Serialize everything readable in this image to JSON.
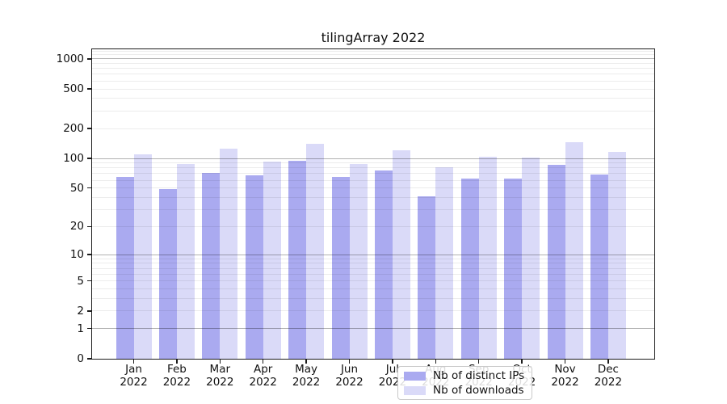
{
  "title": "tilingArray 2022",
  "legend": {
    "items": [
      {
        "label": "Nb of distinct IPs",
        "color": "#aaaaf0"
      },
      {
        "label": "Nb of downloads",
        "color": "#dadaf8"
      }
    ]
  },
  "y_axis": {
    "tick_values": [
      0,
      1,
      2,
      5,
      10,
      20,
      50,
      100,
      200,
      500,
      1000
    ],
    "tick_labels": [
      "0",
      "1",
      "2",
      "5",
      "10",
      "20",
      "50",
      "100",
      "200",
      "500",
      "1000"
    ]
  },
  "x_axis": {
    "months": [
      "Jan",
      "Feb",
      "Mar",
      "Apr",
      "May",
      "Jun",
      "Jul",
      "Aug",
      "Sep",
      "Oct",
      "Nov",
      "Dec"
    ],
    "year": "2022"
  },
  "colors": {
    "distinct_ips_bar": "#aaaaf0",
    "downloads_bar": "#dadaf8",
    "major_gridline": "rgba(0,0,0,0.30)",
    "minor_gridline": "rgba(0,0,0,0.075)",
    "spine": "#1c1c1c",
    "legend_border": "#c9c9c9",
    "background": "#ffffff"
  },
  "chart_data": {
    "type": "bar",
    "title": "tilingArray 2022",
    "categories": [
      "Jan 2022",
      "Feb 2022",
      "Mar 2022",
      "Apr 2022",
      "May 2022",
      "Jun 2022",
      "Jul 2022",
      "Aug 2022",
      "Sep 2022",
      "Oct 2022",
      "Nov 2022",
      "Dec 2022"
    ],
    "series": [
      {
        "name": "Nb of distinct IPs",
        "color": "#aaaaf0",
        "values": [
          65,
          49,
          72,
          68,
          94,
          65,
          76,
          41,
          62,
          62,
          86,
          69
        ]
      },
      {
        "name": "Nb of downloads",
        "color": "#dadaf8",
        "values": [
          111,
          87,
          126,
          92,
          140,
          88,
          120,
          82,
          104,
          102,
          145,
          117
        ]
      }
    ],
    "xlabel": "",
    "ylabel": "",
    "y_scale": "log10(value+1)",
    "y_ticks": [
      0,
      1,
      2,
      5,
      10,
      20,
      50,
      100,
      200,
      500,
      1000
    ],
    "ylim": [
      0,
      1250
    ],
    "grid": "on",
    "grid_minor_values": [
      2,
      3,
      4,
      5,
      6,
      7,
      8,
      9,
      20,
      30,
      40,
      50,
      60,
      70,
      80,
      90,
      200,
      300,
      400,
      500,
      600,
      700,
      800,
      900,
      1100,
      1200,
      1300
    ],
    "grid_major_values": [
      1,
      10,
      100,
      1000
    ],
    "legend_position": "lower center inside plot"
  }
}
